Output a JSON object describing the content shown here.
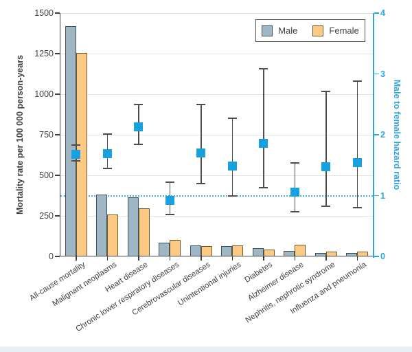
{
  "figure": {
    "colors": {
      "male_fill": "#9fb7c4",
      "male_border": "#3f525c",
      "female_fill": "#fcca85",
      "female_border": "#6e5a2f",
      "hazard_marker": "#17a1e0",
      "error_bar": "#4d4d4d",
      "right_axis": "#2ca6dd",
      "reference_dotted": "#3fb1e3",
      "gridline": "#e4e4e4",
      "text": "#3f3f3f",
      "bottom_strip": "#e9eff5"
    },
    "legend": [
      {
        "label": "Male"
      },
      {
        "label": "Female"
      }
    ]
  },
  "chart_data": {
    "type": "bar",
    "subtype": "grouped-bars-with-errorbar-scatter-dual-axis",
    "title": "",
    "xlabel": "",
    "ylabel": "Mortality rate per 100 000 person-years",
    "y2label": "Male to female hazard ratio",
    "ylim": [
      0,
      1500
    ],
    "y2lim": [
      0,
      4
    ],
    "yticks": [
      0,
      250,
      500,
      750,
      1000,
      1250,
      1500
    ],
    "y2ticks": [
      0,
      1,
      2,
      3,
      4
    ],
    "grid": true,
    "legend_position": "top-right-inside",
    "reference_line_y2": 1,
    "categories": [
      "All-cause mortality",
      "Malignant neoplasms",
      "Heart disease",
      "Chronic lower respiratory diseases",
      "Cerebrovascular diseases",
      "Unintentional injuries",
      "Diabetes",
      "Alzheimer disease",
      "Nephritis, nephrotic syndrome",
      "Influenza and pneumonia"
    ],
    "series": [
      {
        "name": "Male",
        "type": "bar",
        "axis": "left",
        "values": [
          1420,
          380,
          365,
          84,
          67,
          62,
          52,
          34,
          23,
          20
        ]
      },
      {
        "name": "Female",
        "type": "bar",
        "axis": "left",
        "values": [
          1255,
          257,
          296,
          103,
          64,
          66,
          44,
          72,
          28,
          31
        ]
      },
      {
        "name": "Male to female hazard ratio",
        "type": "scatter-errorbar",
        "axis": "right",
        "values": [
          1.68,
          1.69,
          2.13,
          0.92,
          1.7,
          1.49,
          1.86,
          1.06,
          1.47,
          1.54
        ],
        "ci_low": [
          1.57,
          1.45,
          1.84,
          0.69,
          1.2,
          1.0,
          1.13,
          0.73,
          0.82,
          0.8
        ],
        "ci_high": [
          1.83,
          2.01,
          2.5,
          1.22,
          2.5,
          2.27,
          3.08,
          1.54,
          2.71,
          2.88
        ]
      }
    ]
  }
}
